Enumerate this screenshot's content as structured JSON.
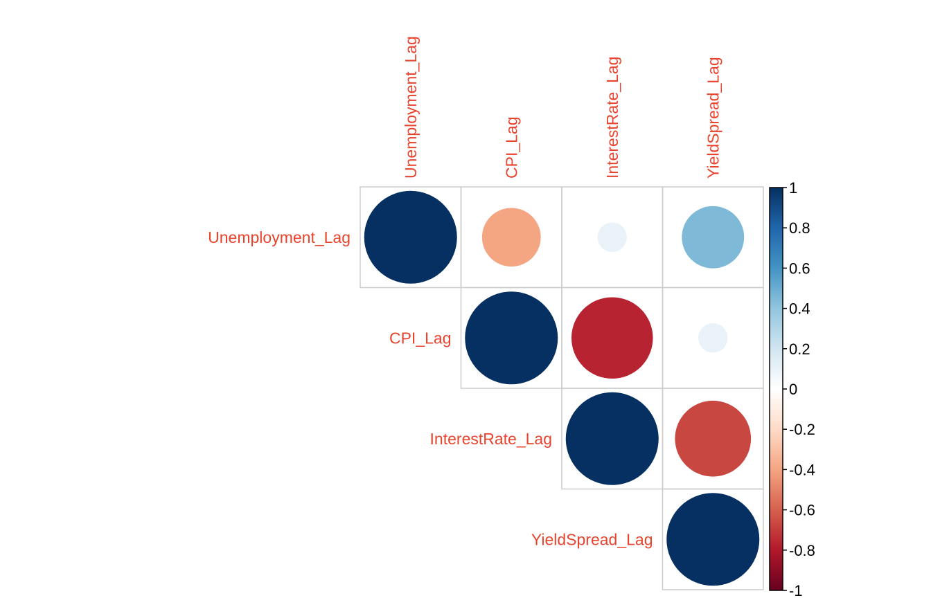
{
  "chart_data": {
    "type": "heatmap",
    "subtype": "correlation-matrix-circles-upper-triangle",
    "variables": [
      "Unemployment_Lag",
      "CPI_Lag",
      "InterestRate_Lag",
      "YieldSpread_Lag"
    ],
    "matrix": [
      [
        1.0,
        -0.4,
        0.1,
        0.45
      ],
      [
        -0.4,
        1.0,
        -0.77,
        0.1
      ],
      [
        0.1,
        -0.77,
        1.0,
        -0.67
      ],
      [
        0.45,
        0.1,
        -0.67,
        1.0
      ]
    ],
    "colorbar": {
      "min": -1,
      "max": 1,
      "ticks": [
        "1",
        "0.8",
        "0.6",
        "0.4",
        "0.2",
        "0",
        "-0.2",
        "-0.4",
        "-0.6",
        "-0.8",
        "-1"
      ],
      "tick_values": [
        1,
        0.8,
        0.6,
        0.4,
        0.2,
        0,
        -0.2,
        -0.4,
        -0.6,
        -0.8,
        -1
      ],
      "palette": [
        "#67001F",
        "#B2182B",
        "#D6604D",
        "#F4A582",
        "#FDDBC7",
        "#FFFFFF",
        "#D1E5F0",
        "#92C5DE",
        "#4393C3",
        "#2166AC",
        "#053061"
      ],
      "placement": "right"
    },
    "label_color": "#E8432D",
    "grid_color": "#CCCCCC"
  }
}
